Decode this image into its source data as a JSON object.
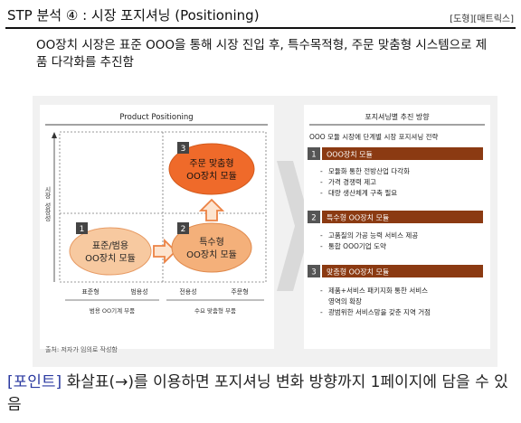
{
  "header": {
    "title": "STP 분석 ④ : 시장 포지셔닝 (Positioning)",
    "tag": "[도형][매트릭스]"
  },
  "subtitle": "OO장치 시장은 표준 OOO을 통해 시장 진입 후, 특수목적형, 주문 맞춤형 시스템으로 제품 다각화를 추진함",
  "positioning_map": {
    "title": "Product Positioning",
    "y_axis_left": "시장",
    "y_axis_right": "성장성",
    "x_ticks": [
      "표준형",
      "범용성",
      "전용성",
      "주문형"
    ],
    "x_groups": [
      "범용 OO기계 부품",
      "수요 맞춤형 부품"
    ],
    "nodes": [
      {
        "num": "1",
        "line1": "표준/범용",
        "line2": "OO장치 모듈",
        "color": "#f7c9a0"
      },
      {
        "num": "2",
        "line1": "특수형",
        "line2": "OO장치 모듈",
        "color": "#f4a56a"
      },
      {
        "num": "3",
        "line1": "주문 맞춤형",
        "line2": "OO장치 모듈",
        "color": "#ef6a2a"
      }
    ]
  },
  "strategy": {
    "title": "포지셔닝별 추진 방향",
    "intro": "OOO 모듈 시장에 단계별 시장 포지셔닝 전략",
    "items": [
      {
        "num": "1",
        "label": "OOO장치 모듈",
        "bullets": [
          "모듈화 통한 전방산업 다각화",
          "가격 경쟁력 제고",
          "대량 생산체계 구축 필요"
        ]
      },
      {
        "num": "2",
        "label": "특수형 OO장치 모듈",
        "bullets": [
          "고품질의 가공 능력 서비스 제공",
          "통합 OOO기업 도약"
        ]
      },
      {
        "num": "3",
        "label": "맞춤형 OO장치 모듈",
        "bullets": [
          "제품+서비스 패키지화 통한 서비스",
          "영역의 확장",
          "광범위한 서비스망을 갖춘 지역 거점"
        ]
      }
    ],
    "accent": "#8b3a12"
  },
  "source": "출처: 저자가 임의로 작성함",
  "note": {
    "point": "[포인트]",
    "text": " 화살표(→)를 이용하면 포지셔닝 변화 방향까지 1페이지에 담을 수 있음"
  }
}
